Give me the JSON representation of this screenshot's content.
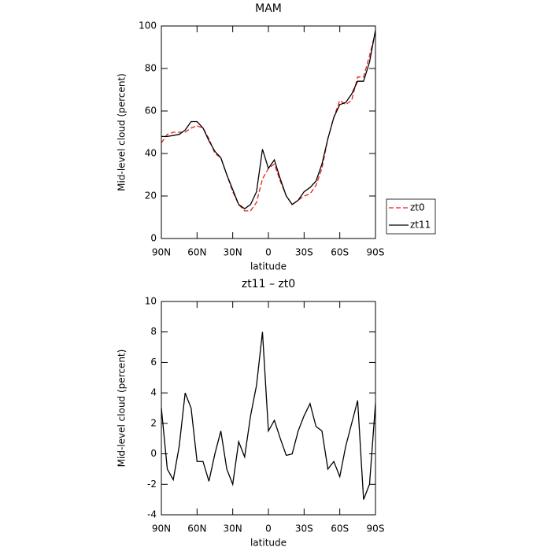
{
  "chart_data": [
    {
      "type": "line",
      "title": "MAM",
      "xlabel": "latitude",
      "ylabel": "Mid-level cloud (percent)",
      "x": [
        90,
        85,
        80,
        75,
        70,
        65,
        60,
        55,
        50,
        45,
        40,
        35,
        30,
        25,
        20,
        15,
        10,
        5,
        0,
        -5,
        -10,
        -15,
        -20,
        -25,
        -30,
        -35,
        -40,
        -45,
        -50,
        -55,
        -60,
        -65,
        -70,
        -75,
        -80,
        -85,
        -90
      ],
      "series": [
        {
          "name": "zt0",
          "color": "#e8201c",
          "dash": true,
          "values": [
            45,
            49,
            50,
            50,
            50,
            52,
            53,
            52,
            47,
            40,
            38,
            30,
            22,
            16,
            13,
            13,
            17,
            28,
            33,
            35,
            27,
            20,
            16,
            18,
            20,
            21,
            25,
            33,
            47,
            57,
            65,
            63,
            65,
            76,
            76,
            86,
            97
          ]
        },
        {
          "name": "zt11",
          "color": "#000000",
          "dash": false,
          "values": [
            48,
            48,
            48.5,
            49,
            51,
            55,
            55,
            52,
            46,
            41,
            38,
            30,
            23,
            16,
            14,
            16,
            22,
            42,
            33,
            37,
            28,
            20,
            16,
            18,
            22,
            24,
            27,
            35,
            47,
            57,
            63,
            64,
            68,
            74,
            74,
            83,
            98
          ]
        }
      ],
      "xlim": [
        90,
        -90
      ],
      "xticks": [
        {
          "value": 90,
          "label": "90N"
        },
        {
          "value": 60,
          "label": "60N"
        },
        {
          "value": 30,
          "label": "30N"
        },
        0,
        {
          "value": -30,
          "label": "30S"
        },
        {
          "value": -60,
          "label": "60S"
        },
        {
          "value": -90,
          "label": "90S"
        }
      ],
      "ylim": [
        0,
        100
      ],
      "yticks": [
        0,
        20,
        40,
        60,
        80,
        100
      ],
      "legend": "outside-right"
    },
    {
      "type": "line",
      "title": "zt11 – zt0",
      "xlabel": "latitude",
      "ylabel": "Mid-level cloud (percent)",
      "x": [
        90,
        85,
        80,
        75,
        70,
        65,
        60,
        55,
        50,
        45,
        40,
        35,
        30,
        25,
        20,
        15,
        10,
        5,
        0,
        -5,
        -10,
        -15,
        -20,
        -25,
        -30,
        -35,
        -40,
        -45,
        -50,
        -55,
        -60,
        -65,
        -70,
        -75,
        -80,
        -85,
        -90
      ],
      "series": [
        {
          "color": "#000000",
          "dash": false,
          "values": [
            3,
            -1,
            -1.7,
            0.5,
            4,
            3,
            -0.5,
            -0.5,
            -1.8,
            0,
            1.5,
            -1,
            -2,
            0.8,
            -0.2,
            2.5,
            4.5,
            8,
            1.5,
            2.2,
            1,
            -0.1,
            0,
            1.5,
            2.5,
            3.3,
            1.8,
            1.5,
            -1,
            -0.5,
            -1.5,
            0.5,
            2,
            3.5,
            -3,
            -2,
            3.3
          ]
        }
      ],
      "xlim": [
        90,
        -90
      ],
      "xticks": [
        {
          "value": 90,
          "label": "90N"
        },
        {
          "value": 60,
          "label": "60N"
        },
        {
          "value": 30,
          "label": "30N"
        },
        0,
        {
          "value": -30,
          "label": "30S"
        },
        {
          "value": -60,
          "label": "60S"
        },
        {
          "value": -90,
          "label": "90S"
        }
      ],
      "ylim": [
        -4,
        10
      ],
      "yticks": [
        -4,
        -2,
        0,
        2,
        4,
        6,
        8,
        10
      ]
    }
  ]
}
